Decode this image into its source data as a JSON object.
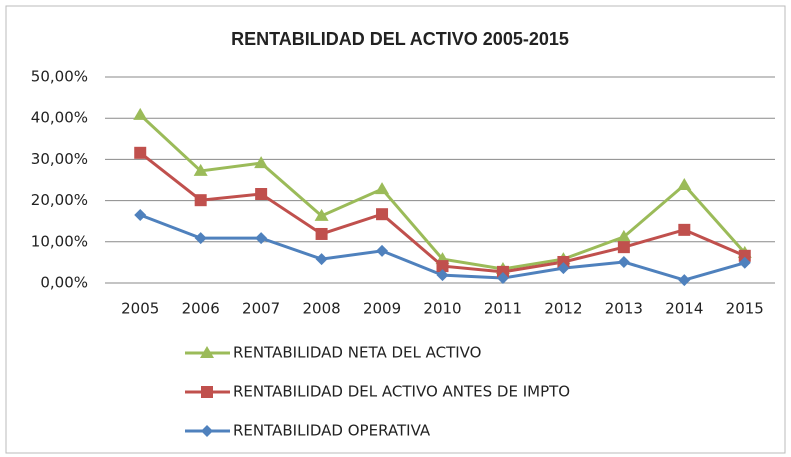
{
  "chart_data": {
    "type": "line",
    "title": "RENTABILIDAD  DEL ACTIVO 2005-2015",
    "categories": [
      "2005",
      "2006",
      "2007",
      "2008",
      "2009",
      "2010",
      "2011",
      "2012",
      "2013",
      "2014",
      "2015"
    ],
    "series": [
      {
        "name": "RENTABILIDAD NETA DEL ACTIVO",
        "color": "#9bbb59",
        "marker": "triangle",
        "values": [
          40.8,
          27.2,
          29.1,
          16.3,
          22.8,
          5.8,
          3.4,
          5.8,
          11.2,
          23.8,
          7.3
        ]
      },
      {
        "name": "RENTABILIDAD DEL ACTIVO ANTES DE IMPTO",
        "color": "#c0504d",
        "marker": "square",
        "values": [
          31.6,
          20.1,
          21.6,
          11.9,
          16.7,
          4.1,
          2.7,
          5.1,
          8.7,
          12.9,
          6.6
        ]
      },
      {
        "name": "RENTABILIDAD OPERATIVA",
        "color": "#4f81bd",
        "marker": "diamond",
        "values": [
          16.5,
          10.9,
          10.9,
          5.8,
          7.8,
          1.9,
          1.2,
          3.6,
          5.1,
          0.7,
          4.9
        ]
      }
    ],
    "ylim": [
      0,
      50
    ],
    "yticks": [
      {
        "value": 0,
        "label": "0,00%"
      },
      {
        "value": 10,
        "label": "10,00%"
      },
      {
        "value": 20,
        "label": "20,00%"
      },
      {
        "value": 30,
        "label": "30,00%"
      },
      {
        "value": 40,
        "label": "40,00%"
      },
      {
        "value": 50,
        "label": "50,00%"
      }
    ],
    "grid": true,
    "legend": "bottom"
  }
}
